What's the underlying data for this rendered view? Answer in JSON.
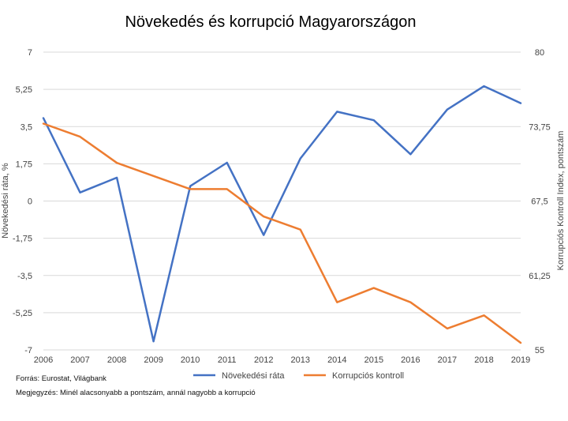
{
  "chart_data": {
    "type": "line",
    "title": "Növekedés és korrupció Magyarországon",
    "x": [
      "2006",
      "2007",
      "2008",
      "2009",
      "2010",
      "2011",
      "2012",
      "2013",
      "2014",
      "2015",
      "2016",
      "2017",
      "2018",
      "2019"
    ],
    "ylabel": "Növekedési ráta, %",
    "y2label": "Korrupciós Kontroll Index, pontszám",
    "ylim": [
      -7,
      7
    ],
    "y2lim": [
      55,
      80
    ],
    "yticks": [
      "-7",
      "-5,25",
      "-3,5",
      "-1,75",
      "0",
      "1,75",
      "3,5",
      "5,25",
      "7"
    ],
    "y2ticks": [
      "55",
      "61,25",
      "67,5",
      "73,75",
      "80"
    ],
    "grid": true,
    "legend": "bottom",
    "series": [
      {
        "name": "Növekedési ráta",
        "axis": "left",
        "color": "#4472C4",
        "values": [
          3.9,
          0.4,
          1.1,
          -6.6,
          0.7,
          1.8,
          -1.6,
          2.0,
          4.2,
          3.8,
          2.2,
          4.3,
          5.4,
          4.6
        ]
      },
      {
        "name": "Korrupciós kontroll",
        "axis": "right",
        "color": "#ED7D31",
        "values": [
          74.0,
          72.9,
          70.7,
          69.6,
          68.5,
          68.5,
          66.2,
          65.1,
          59.0,
          60.2,
          59.0,
          56.8,
          57.9,
          55.6
        ]
      }
    ]
  },
  "footnotes": {
    "source": "Forrás: Eurostat, Világbank",
    "note": "Megjegyzés: Minél alacsonyabb a pontszám, annál nagyobb a korrupció"
  }
}
